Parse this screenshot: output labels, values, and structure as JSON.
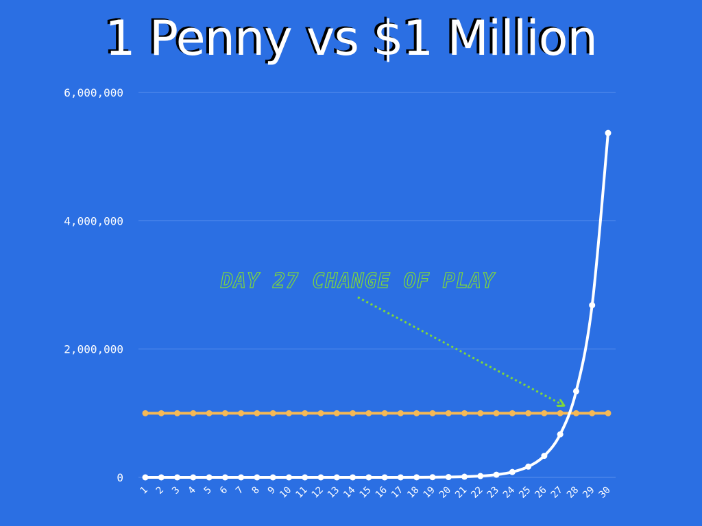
{
  "colors": {
    "background": "#2b6fe3",
    "gridline": "#5a8fee",
    "penny_series": "#ffffff",
    "million_series": "#f6b955",
    "annotation": "#7fd83a"
  },
  "chart_data": {
    "type": "line",
    "title": "1 Penny vs $1 Million",
    "xlabel": "",
    "ylabel": "",
    "grid": true,
    "ylim": [
      0,
      6000000
    ],
    "y_ticks": [
      0,
      2000000,
      4000000,
      6000000
    ],
    "y_tick_labels": [
      "0",
      "2,000,000",
      "4,000,000",
      "6,000,000"
    ],
    "categories": [
      "1",
      "2",
      "3",
      "4",
      "5",
      "6",
      "7",
      "8",
      "9",
      "10",
      "11",
      "12",
      "13",
      "14",
      "15",
      "16",
      "17",
      "18",
      "19",
      "20",
      "21",
      "22",
      "23",
      "24",
      "25",
      "26",
      "27",
      "28",
      "29",
      "30"
    ],
    "series": [
      {
        "values": [
          0.01,
          0.02,
          0.04,
          0.08,
          0.16,
          0.32,
          0.64,
          1.28,
          2.56,
          5.12,
          10.24,
          20.48,
          40.96,
          81.92,
          163.84,
          327.68,
          655.36,
          1310.72,
          2621.44,
          5242.88,
          10485.76,
          20971.52,
          41943.04,
          83886.08,
          167772.16,
          335544.32,
          671088.64,
          1342177.28,
          2684354.56,
          5368709.12
        ]
      },
      {
        "values": [
          1000000,
          1000000,
          1000000,
          1000000,
          1000000,
          1000000,
          1000000,
          1000000,
          1000000,
          1000000,
          1000000,
          1000000,
          1000000,
          1000000,
          1000000,
          1000000,
          1000000,
          1000000,
          1000000,
          1000000,
          1000000,
          1000000,
          1000000,
          1000000,
          1000000,
          1000000,
          1000000,
          1000000,
          1000000,
          1000000
        ]
      }
    ],
    "annotations": [
      {
        "text": "DAY 27 CHANGE OF PLAY",
        "points_to_category": "27"
      }
    ]
  }
}
